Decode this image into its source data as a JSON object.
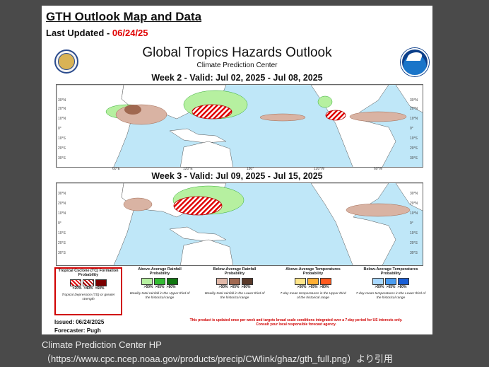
{
  "page": {
    "gth_title": "GTH Outlook Map and Data",
    "last_updated_label": "Last Updated - ",
    "last_updated_date": "06/24/25",
    "main_title": "Global Tropics Hazards Outlook",
    "sub_title": "Climate Prediction Center"
  },
  "weeks": [
    {
      "title": "Week 2 - Valid: Jul 02, 2025 - Jul 08, 2025"
    },
    {
      "title": "Week 3 - Valid: Jul 09, 2025 - Jul 15, 2025"
    }
  ],
  "latitudes": [
    "30°N",
    "20°N",
    "10°N",
    "0°",
    "10°S",
    "20°S",
    "30°S"
  ],
  "longitudes": [
    "60°E",
    "120°E",
    "180°",
    "120°W",
    "60°W"
  ],
  "legend": [
    {
      "title": "Tropical Cyclone (TC) Formation Probability",
      "levels": [
        ">20%",
        ">40%",
        ">60%"
      ],
      "colors": [
        "#f08080",
        "#d00000",
        "#7a0000"
      ],
      "note": "Tropical Depression (TD) or greater strength",
      "highlighted": true
    },
    {
      "title": "Above-Average Rainfall Probability",
      "levels": [
        ">50%",
        ">65%",
        ">80%"
      ],
      "colors": [
        "#b6f0a0",
        "#33bb33",
        "#117711"
      ],
      "note": "Weekly total rainfall in the Upper third of the historical range"
    },
    {
      "title": "Below-Average Rainfall Probability",
      "levels": [
        ">50%",
        ">65%",
        ">80%"
      ],
      "colors": [
        "#e0b8a8",
        "#a06850",
        "#5a3a2a"
      ],
      "note": "Weekly total rainfall in the Lower third of the historical range"
    },
    {
      "title": "Above-Average Temperatures Probability",
      "levels": [
        ">50%",
        ">65%",
        ">80%"
      ],
      "colors": [
        "#ffe58a",
        "#ffae33",
        "#ff5a1f"
      ],
      "note": "7-day mean temperatures in the Upper third of the historical range"
    },
    {
      "title": "Below-Average Temperatures Probability",
      "levels": [
        ">50%",
        ">65%",
        ">80%"
      ],
      "colors": [
        "#a8d8ff",
        "#4a9cf0",
        "#1a5fd6"
      ],
      "note": "7-day mean temperatures in the Lower third of the historical range"
    }
  ],
  "footer": {
    "issued": "Issued: 06/24/2025",
    "forecaster": "Forecaster: Pugh",
    "notice_line1": "This product is updated once per week and targets broad scale conditions integrated over a 7-day period for US interests only.",
    "notice_line2": "Consult your local responsible forecast agency."
  },
  "caption": {
    "line1": "Climate Prediction Center HP",
    "line2": "（https://www.cpc.ncep.noaa.gov/products/precip/CWlink/ghaz/gth_full.png）より引用"
  },
  "colors": {
    "ocean": "#bfe7f8",
    "land": "#ffffff",
    "tc_hatch": "#e00000",
    "rain_above": "#b6f0a0",
    "rain_below": "#d9b3a3"
  }
}
